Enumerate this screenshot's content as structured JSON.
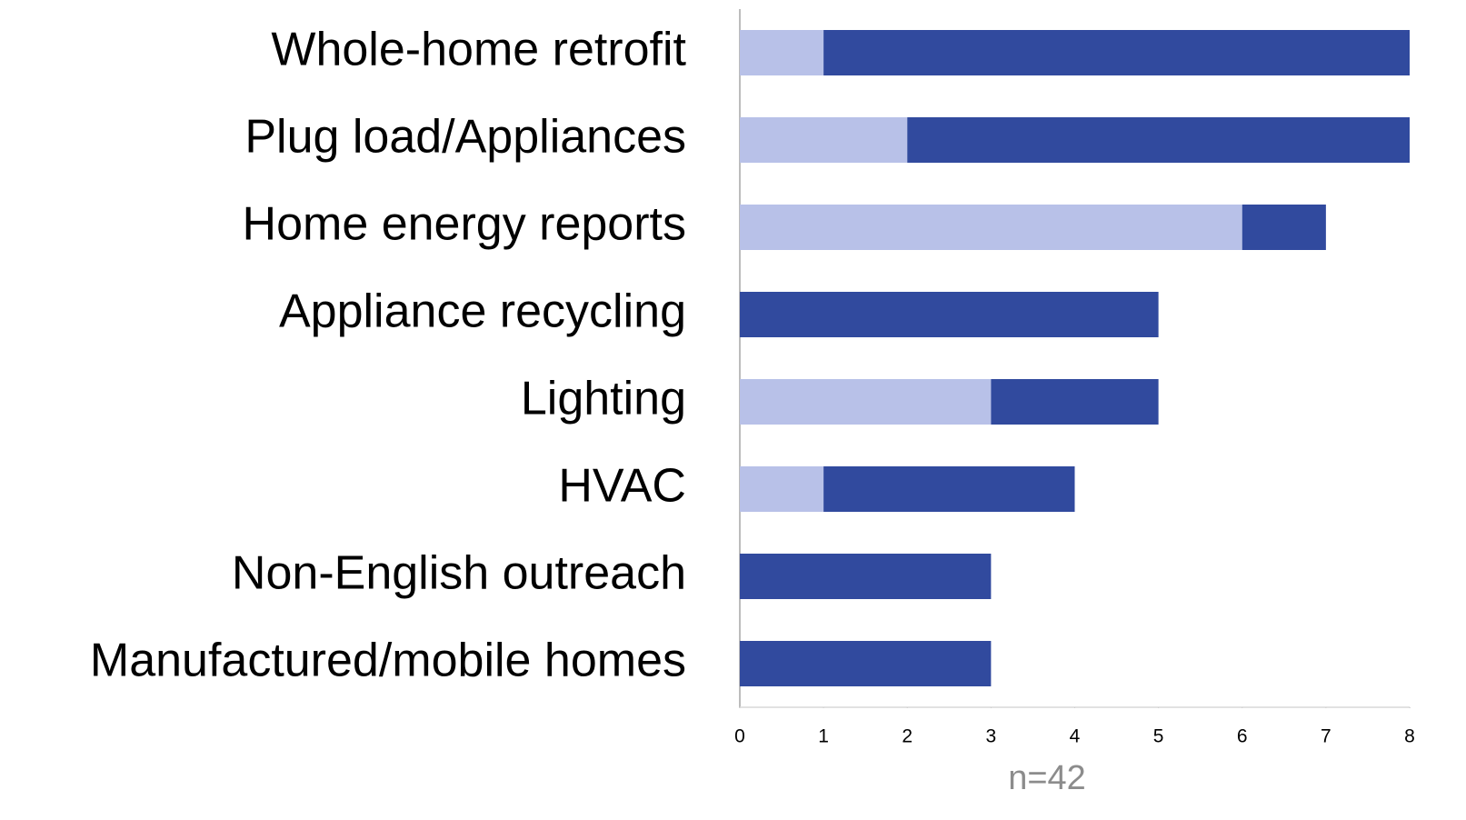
{
  "chart_data": {
    "type": "stacked-barh",
    "categories": [
      "Whole-home retrofit",
      "Plug load/Appliances",
      "Home energy reports",
      "Appliance recycling",
      "Lighting",
      "HVAC",
      "Non-English outreach",
      "Manufactured/mobile homes"
    ],
    "series": [
      {
        "color": "#b8c1e8",
        "values": [
          1,
          2,
          6,
          0,
          3,
          1,
          0,
          0
        ]
      },
      {
        "color": "#314a9e",
        "values": [
          7,
          6,
          1,
          5,
          2,
          3,
          3,
          3
        ]
      }
    ],
    "xlim": [
      0,
      8
    ],
    "xticks": [
      0,
      1,
      2,
      3,
      4,
      5,
      6,
      7,
      8
    ],
    "xlabel": "n=42"
  }
}
